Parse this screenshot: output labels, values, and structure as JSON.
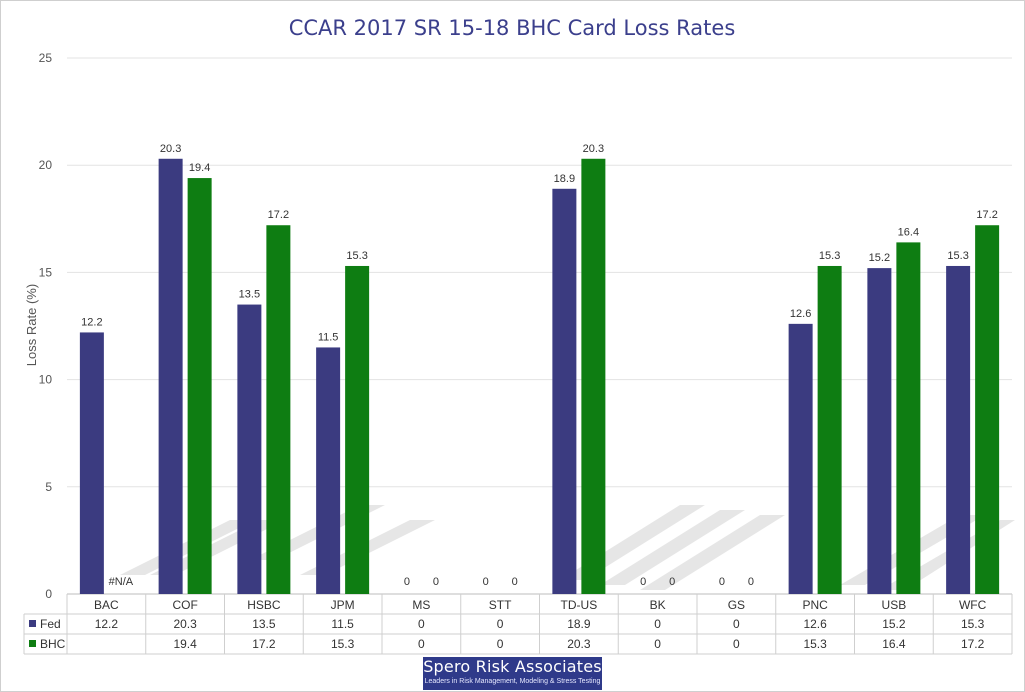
{
  "chart_data": {
    "type": "bar",
    "title": "CCAR 2017 SR 15-18 BHC Card Loss Rates",
    "ylabel": "Loss Rate (%)",
    "xlabel": "",
    "ylim": [
      0,
      25
    ],
    "yticks": [
      0,
      5,
      10,
      15,
      20,
      25
    ],
    "grid": true,
    "legend": "data-table",
    "categories": [
      "BAC",
      "COF",
      "HSBC",
      "JPM",
      "MS",
      "STT",
      "TD-US",
      "BK",
      "GS",
      "PNC",
      "USB",
      "WFC"
    ],
    "series": [
      {
        "name": "Fed",
        "color": "#3b3b80",
        "values": [
          12.2,
          20.3,
          13.5,
          11.5,
          0,
          0,
          18.9,
          0,
          0,
          12.6,
          15.2,
          15.3
        ],
        "labels": [
          "12.2",
          "20.3",
          "13.5",
          "11.5",
          "0",
          "0",
          "18.9",
          "0",
          "0",
          "12.6",
          "15.2",
          "15.3"
        ],
        "table": [
          "12.2",
          "20.3",
          "13.5",
          "11.5",
          "0",
          "0",
          "18.9",
          "0",
          "0",
          "12.6",
          "15.2",
          "15.3"
        ]
      },
      {
        "name": "BHC",
        "color": "#0e7d12",
        "values": [
          null,
          19.4,
          17.2,
          15.3,
          0,
          0,
          20.3,
          0,
          0,
          15.3,
          16.4,
          17.2
        ],
        "labels": [
          "#N/A",
          "19.4",
          "17.2",
          "15.3",
          "0",
          "0",
          "20.3",
          "0",
          "0",
          "15.3",
          "16.4",
          "17.2"
        ],
        "table": [
          "",
          "19.4",
          "17.2",
          "15.3",
          "0",
          "0",
          "20.3",
          "0",
          "0",
          "15.3",
          "16.4",
          "17.2"
        ]
      }
    ]
  },
  "logo": {
    "name": "Spero Risk Associates",
    "tagline": "Leaders in Risk Management, Modeling & Stress Testing"
  }
}
